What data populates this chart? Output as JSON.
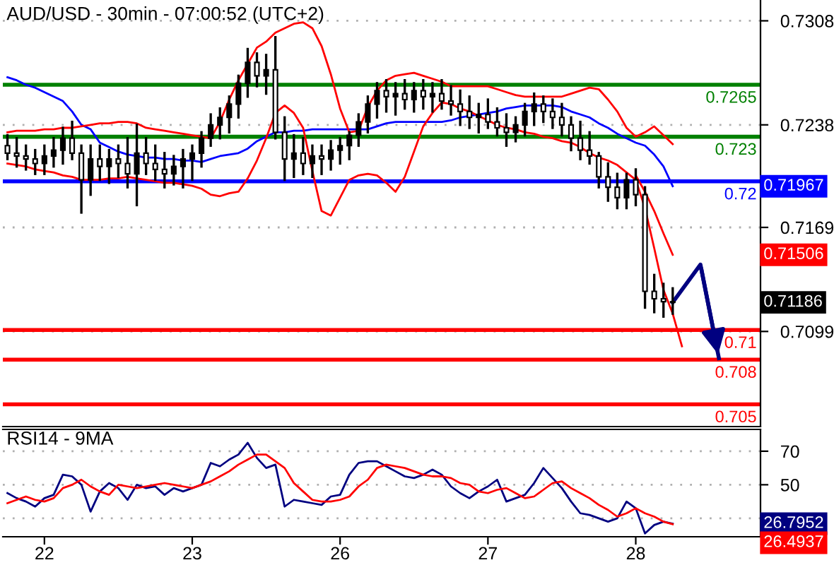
{
  "chart_data": [
    {
      "type": "candlestick",
      "title": "AUD/USD - 30min - 07:00:52 (UTC+2)",
      "color": "#000000",
      "categories": [
        null,
        null,
        null,
        null,
        "22",
        null,
        null,
        null,
        null,
        null,
        null,
        null,
        null,
        null,
        null,
        null,
        null,
        null,
        null,
        null,
        "23",
        null,
        null,
        null,
        null,
        null,
        null,
        null,
        null,
        null,
        null,
        null,
        null,
        null,
        null,
        null,
        "26",
        null,
        null,
        null,
        null,
        null,
        null,
        null,
        null,
        null,
        null,
        null,
        null,
        null,
        null,
        null,
        "27",
        null,
        null,
        null,
        null,
        null,
        null,
        null,
        null,
        null,
        null,
        null,
        null,
        null,
        null,
        null,
        "28",
        null,
        null,
        null,
        null,
        null,
        null,
        null,
        null,
        null,
        null,
        null,
        null,
        null
      ],
      "ohlc": [
        [
          0.7224,
          0.7231,
          0.7215,
          0.7219
        ],
        [
          0.7219,
          0.7229,
          0.721,
          0.7217
        ],
        [
          0.7217,
          0.7224,
          0.7208,
          0.7215
        ],
        [
          0.7215,
          0.7221,
          0.7205,
          0.7212
        ],
        [
          0.7212,
          0.7224,
          0.7205,
          0.7217
        ],
        [
          0.7217,
          0.7229,
          0.721,
          0.7221
        ],
        [
          0.7221,
          0.7236,
          0.7212,
          0.7229
        ],
        [
          0.7229,
          0.724,
          0.7215,
          0.7219
        ],
        [
          0.7219,
          0.7224,
          0.7179,
          0.7201
        ],
        [
          0.7201,
          0.7224,
          0.7191,
          0.7215
        ],
        [
          0.7215,
          0.7224,
          0.7201,
          0.721
        ],
        [
          0.721,
          0.7221,
          0.7199,
          0.7215
        ],
        [
          0.7215,
          0.7224,
          0.7203,
          0.7212
        ],
        [
          0.7212,
          0.7229,
          0.7196,
          0.7205
        ],
        [
          0.7205,
          0.7238,
          0.7184,
          0.7219
        ],
        [
          0.7219,
          0.7229,
          0.7205,
          0.7212
        ],
        [
          0.7212,
          0.7224,
          0.7201,
          0.7208
        ],
        [
          0.7208,
          0.7219,
          0.7196,
          0.7205
        ],
        [
          0.7205,
          0.7217,
          0.7198,
          0.721
        ],
        [
          0.721,
          0.7221,
          0.7196,
          0.7215
        ],
        [
          0.7215,
          0.7224,
          0.7201,
          0.7219
        ],
        [
          0.7219,
          0.7233,
          0.721,
          0.7229
        ],
        [
          0.7229,
          0.7245,
          0.7224,
          0.7238
        ],
        [
          0.7238,
          0.7249,
          0.7229,
          0.7243
        ],
        [
          0.7243,
          0.7257,
          0.7233,
          0.7252
        ],
        [
          0.7252,
          0.7271,
          0.7243,
          0.7266
        ],
        [
          0.7266,
          0.7289,
          0.7257,
          0.728
        ],
        [
          0.728,
          0.7286,
          0.7264,
          0.7271
        ],
        [
          0.7271,
          0.7285,
          0.7259,
          0.7275
        ],
        [
          0.7275,
          0.7297,
          0.7229,
          0.7233
        ],
        [
          0.7233,
          0.7243,
          0.7201,
          0.7215
        ],
        [
          0.7215,
          0.7231,
          0.7203,
          0.7219
        ],
        [
          0.7219,
          0.7229,
          0.7205,
          0.7212
        ],
        [
          0.7212,
          0.7224,
          0.7203,
          0.7217
        ],
        [
          0.7217,
          0.7224,
          0.7205,
          0.7215
        ],
        [
          0.7215,
          0.7227,
          0.7208,
          0.7221
        ],
        [
          0.7221,
          0.7229,
          0.7212,
          0.7224
        ],
        [
          0.7224,
          0.7233,
          0.7215,
          0.7231
        ],
        [
          0.7231,
          0.7245,
          0.7224,
          0.724
        ],
        [
          0.724,
          0.7257,
          0.7233,
          0.7252
        ],
        [
          0.7252,
          0.7266,
          0.7243,
          0.7261
        ],
        [
          0.7261,
          0.7268,
          0.7247,
          0.7257
        ],
        [
          0.7257,
          0.7266,
          0.7245,
          0.7259
        ],
        [
          0.7259,
          0.7268,
          0.7249,
          0.7255
        ],
        [
          0.7255,
          0.7266,
          0.7247,
          0.7261
        ],
        [
          0.7261,
          0.7268,
          0.7249,
          0.7257
        ],
        [
          0.7257,
          0.7266,
          0.7247,
          0.7259
        ],
        [
          0.7259,
          0.7268,
          0.7249,
          0.7254
        ],
        [
          0.7254,
          0.7264,
          0.7245,
          0.7252
        ],
        [
          0.7252,
          0.7261,
          0.7238,
          0.7247
        ],
        [
          0.7247,
          0.7257,
          0.7236,
          0.7243
        ],
        [
          0.7243,
          0.7252,
          0.7233,
          0.7245
        ],
        [
          0.7245,
          0.7255,
          0.7236,
          0.724
        ],
        [
          0.724,
          0.7249,
          0.7231,
          0.7236
        ],
        [
          0.7236,
          0.7245,
          0.7224,
          0.7233
        ],
        [
          0.7233,
          0.7243,
          0.7227,
          0.7238
        ],
        [
          0.7238,
          0.7252,
          0.7231,
          0.7247
        ],
        [
          0.7247,
          0.7259,
          0.7238,
          0.7252
        ],
        [
          0.7252,
          0.7257,
          0.724,
          0.7247
        ],
        [
          0.7247,
          0.7255,
          0.7236,
          0.7243
        ],
        [
          0.7243,
          0.7252,
          0.7231,
          0.7238
        ],
        [
          0.7238,
          0.7243,
          0.7221,
          0.7229
        ],
        [
          0.7229,
          0.724,
          0.7215,
          0.7221
        ],
        [
          0.7221,
          0.7233,
          0.7212,
          0.7217
        ],
        [
          0.7217,
          0.7219,
          0.7196,
          0.7203
        ],
        [
          0.7203,
          0.7212,
          0.7187,
          0.7196
        ],
        [
          0.7196,
          0.7205,
          0.7182,
          0.7189
        ],
        [
          0.7189,
          0.7205,
          0.7182,
          0.7201
        ],
        [
          0.7201,
          0.7208,
          0.7184,
          0.7191
        ],
        [
          0.7191,
          0.7196,
          0.7115,
          0.7126
        ],
        [
          0.7126,
          0.7137,
          0.7112,
          0.7121
        ],
        [
          0.7121,
          0.7131,
          0.7109,
          0.7119
        ],
        [
          0.7119,
          0.7128,
          0.7111,
          0.71186
        ],
        null,
        null,
        null,
        null,
        null,
        null,
        null,
        null,
        null
      ],
      "series": [
        {
          "type": "line",
          "color": "#0000ff",
          "values": [
            0.727,
            0.7268,
            0.7265,
            0.7263,
            0.726,
            0.7257,
            0.7254,
            0.7247,
            0.7238,
            0.7235,
            0.7226,
            0.7223,
            0.722,
            0.7218,
            0.7217,
            0.7216,
            0.7216,
            0.7215,
            0.7215,
            0.7214,
            0.7214,
            0.7213,
            0.7215,
            0.7217,
            0.7218,
            0.7219,
            0.7222,
            0.7227,
            0.723,
            0.7233,
            0.7233,
            0.7234,
            0.7234,
            0.7235,
            0.7235,
            0.7235,
            0.7235,
            0.7235,
            0.7235,
            0.7235,
            0.7237,
            0.7239,
            0.724,
            0.724,
            0.724,
            0.724,
            0.724,
            0.724,
            0.7241,
            0.7243,
            0.7244,
            0.7245,
            0.7246,
            0.7247,
            0.7249,
            0.725,
            0.7251,
            0.7251,
            0.7251,
            0.7251,
            0.725,
            0.7247,
            0.7245,
            0.7243,
            0.7239,
            0.7236,
            0.7232,
            0.7229,
            0.7226,
            0.7224,
            0.7218,
            0.721,
            0.71967,
            null,
            null,
            null,
            null,
            null,
            null,
            null,
            null,
            null
          ]
        },
        {
          "type": "line",
          "color": "#ff0000",
          "values": [
            0.7233,
            0.7234,
            0.7234,
            0.7234,
            0.7235,
            0.7235,
            0.7236,
            0.7236,
            0.7237,
            0.7238,
            0.7239,
            0.7239,
            0.724,
            0.724,
            0.7239,
            0.7236,
            0.7235,
            0.7234,
            0.7233,
            0.7232,
            0.7231,
            0.723,
            0.7229,
            0.724,
            0.7255,
            0.7268,
            0.7279,
            0.729,
            0.7294,
            0.73,
            0.7303,
            0.7306,
            0.7307,
            0.7303,
            0.7291,
            0.7272,
            0.7249,
            0.7233,
            0.7234,
            0.725,
            0.7261,
            0.7268,
            0.7271,
            0.7272,
            0.7273,
            0.7271,
            0.7269,
            0.7267,
            0.7264,
            0.7264,
            0.7264,
            0.7264,
            0.7264,
            0.7262,
            0.726,
            0.7258,
            0.7257,
            0.7257,
            0.7257,
            0.7257,
            0.7257,
            0.7259,
            0.7261,
            0.7263,
            0.7262,
            0.7255,
            0.7247,
            0.7236,
            0.723,
            0.7233,
            0.7237,
            0.7231,
            0.7225,
            null,
            null,
            null,
            null,
            null,
            null,
            null,
            null,
            null
          ]
        },
        {
          "type": "line",
          "color": "#ff0000",
          "values": [
            0.7212,
            0.7211,
            0.721,
            0.7208,
            0.7207,
            0.7206,
            0.7204,
            0.7203,
            0.7201,
            0.7201,
            0.7201,
            0.7202,
            0.7202,
            0.7203,
            0.7202,
            0.7201,
            0.72,
            0.7199,
            0.7199,
            0.7198,
            0.7197,
            0.7195,
            0.7191,
            0.719,
            0.7192,
            0.7193,
            0.7202,
            0.7214,
            0.7229,
            0.7246,
            0.7251,
            0.7246,
            0.7236,
            0.7207,
            0.718,
            0.7177,
            0.7189,
            0.7201,
            0.7204,
            0.7205,
            0.7204,
            0.7199,
            0.7193,
            0.7203,
            0.722,
            0.7237,
            0.7246,
            0.7253,
            0.7252,
            0.7249,
            0.7247,
            0.7244,
            0.7241,
            0.7238,
            0.7236,
            0.7235,
            0.7233,
            0.7232,
            0.723,
            0.7229,
            0.7227,
            0.7226,
            0.7223,
            0.7219,
            0.7216,
            0.7214,
            0.7211,
            0.7206,
            0.7201,
            0.7182,
            0.7155,
            0.7127,
            0.7111,
            0.7089,
            null,
            null,
            null,
            null,
            null,
            null,
            null,
            null
          ]
        },
        {
          "type": "line",
          "color": "#ff0000",
          "values": [
            null,
            null,
            null,
            null,
            null,
            null,
            null,
            null,
            null,
            null,
            null,
            null,
            null,
            null,
            null,
            null,
            null,
            null,
            null,
            null,
            null,
            null,
            null,
            null,
            null,
            null,
            null,
            null,
            null,
            null,
            null,
            null,
            null,
            null,
            null,
            null,
            null,
            null,
            null,
            null,
            null,
            null,
            null,
            null,
            null,
            null,
            null,
            null,
            null,
            null,
            null,
            null,
            null,
            null,
            null,
            null,
            null,
            null,
            null,
            null,
            null,
            null,
            null,
            null,
            null,
            null,
            null,
            null,
            0.7204,
            0.7193,
            0.718,
            0.7165,
            0.71506,
            null,
            null,
            null,
            null,
            null,
            null,
            null,
            null,
            null
          ]
        },
        {
          "type": "line",
          "color": "#000080",
          "values": [
            null,
            null,
            null,
            null,
            null,
            null,
            null,
            null,
            null,
            null,
            null,
            null,
            null,
            null,
            null,
            null,
            null,
            null,
            null,
            null,
            null,
            null,
            null,
            null,
            null,
            null,
            null,
            null,
            null,
            null,
            null,
            null,
            null,
            null,
            null,
            null,
            null,
            null,
            null,
            null,
            null,
            null,
            null,
            null,
            null,
            null,
            null,
            null,
            null,
            null,
            null,
            null,
            null,
            null,
            null,
            null,
            null,
            null,
            null,
            null,
            null,
            null,
            null,
            null,
            null,
            null,
            null,
            null,
            null,
            null,
            null,
            null,
            0.71186,
            null,
            null,
            0.7144,
            null,
            0.7081,
            null,
            null,
            null,
            null
          ]
        }
      ],
      "annotations": [
        "0.71967",
        "0.71506",
        "0.71186"
      ],
      "ref_lines": [
        {
          "axis": "y",
          "value": 0.7265,
          "label": "0.7265",
          "color": "#008000"
        },
        {
          "axis": "y",
          "value": 0.723,
          "label": "0.723",
          "color": "#008000"
        },
        {
          "axis": "y",
          "value": 0.72,
          "label": "0.72",
          "color": "#0000ff"
        },
        {
          "axis": "y",
          "value": 0.71,
          "label": "0.71",
          "color": "#ff0000"
        },
        {
          "axis": "y",
          "value": 0.708,
          "label": "0.708",
          "color": "#ff0000"
        },
        {
          "axis": "y",
          "value": 0.705,
          "label": "0.705",
          "color": "#ff0000"
        }
      ],
      "ylim": [
        0.7035,
        0.7322
      ],
      "yticks": [
        0.7308,
        0.7238,
        0.7169,
        0.7099
      ],
      "grid": "y",
      "tick_labels": "y"
    },
    {
      "type": "line",
      "title": "RSI14 - 9MA",
      "categories": [
        null,
        null,
        null,
        null,
        "22",
        null,
        null,
        null,
        null,
        null,
        null,
        null,
        null,
        null,
        null,
        null,
        null,
        null,
        null,
        null,
        "23",
        null,
        null,
        null,
        null,
        null,
        null,
        null,
        null,
        null,
        null,
        null,
        null,
        null,
        null,
        null,
        "26",
        null,
        null,
        null,
        null,
        null,
        null,
        null,
        null,
        null,
        null,
        null,
        null,
        null,
        null,
        null,
        "27",
        null,
        null,
        null,
        null,
        null,
        null,
        null,
        null,
        null,
        null,
        null,
        null,
        null,
        null,
        null,
        "28",
        null,
        null,
        null,
        null,
        null,
        null,
        null,
        null,
        null,
        null,
        null,
        null,
        null
      ],
      "series": [
        {
          "color": "#000080",
          "values": [
            45,
            42,
            40,
            37,
            42,
            44,
            56,
            55,
            50,
            34,
            46,
            51,
            48,
            41,
            50,
            48,
            49,
            44,
            48,
            46,
            48,
            50,
            63,
            61,
            65,
            68,
            75,
            66,
            60,
            62,
            37,
            41,
            40,
            39,
            38,
            43,
            44,
            56,
            63,
            64,
            64,
            61,
            58,
            55,
            54,
            56,
            59,
            56,
            49,
            45,
            42,
            46,
            49,
            53,
            40,
            42,
            44,
            51,
            60,
            54,
            48,
            40,
            33,
            32,
            30,
            28,
            30,
            40,
            36,
            21,
            26,
            28,
            26.7952,
            null,
            null,
            null,
            null,
            null,
            null,
            null,
            null,
            null
          ]
        },
        {
          "color": "#ff0000",
          "values": [
            39,
            41,
            43,
            41,
            40,
            42,
            48,
            50,
            53,
            49,
            46,
            44,
            50,
            49,
            48,
            49,
            50,
            51,
            50,
            49,
            48,
            50,
            52,
            55,
            58,
            62,
            65,
            68,
            68,
            64,
            60,
            51,
            46,
            41,
            40,
            40,
            41,
            43,
            49,
            53,
            60,
            62,
            61,
            60,
            58,
            56,
            55,
            55,
            54,
            51,
            50,
            46,
            45,
            47,
            48,
            45,
            42,
            43,
            47,
            51,
            52,
            48,
            45,
            42,
            38,
            35,
            31,
            33,
            36,
            33,
            31,
            28,
            26.4937,
            null,
            null,
            null,
            null,
            null,
            null,
            null,
            null,
            null
          ]
        }
      ],
      "annotations": [
        "26.7952",
        "26.4937"
      ],
      "ylim": [
        19,
        83
      ],
      "yticks": [
        {
          "value": 30,
          "label": null
        },
        50,
        70
      ],
      "grid": "y"
    }
  ]
}
